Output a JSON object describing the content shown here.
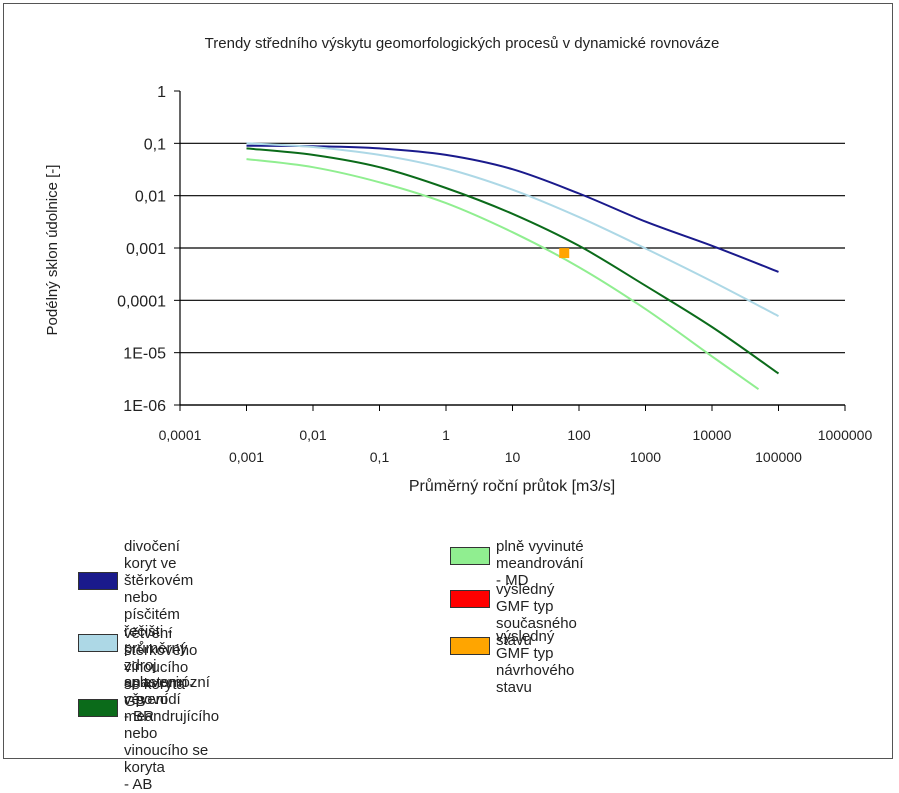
{
  "chart_data": {
    "type": "line",
    "title": "Trendy středního výskytu geomorfologických procesů v dynamické rovnováze",
    "xlabel": "Průměrný roční průtok [m3/s]",
    "ylabel": "Podélný sklon údolnice [-]",
    "x_scale": "log",
    "y_scale": "log",
    "xlim": [
      0.0001,
      1000000
    ],
    "ylim": [
      1e-06,
      1
    ],
    "x_ticks_upper": [
      "0,0001",
      "0,01",
      "1",
      "100",
      "10000",
      "1000000"
    ],
    "x_ticks_lower": [
      "0,001",
      "0,1",
      "10",
      "1000",
      "100000"
    ],
    "y_ticks": [
      "1",
      "0,1",
      "0,01",
      "0,001",
      "0,0001",
      "1E-05",
      "1E-06"
    ],
    "grid": "horizontal",
    "series": [
      {
        "name": "divočení koryt ve štěrkovém nebo písčitém řečišti - průměrný zdroj splavenin v povodí - BR",
        "color": "#1a1a8c",
        "x": [
          0.001,
          0.01,
          0.1,
          1,
          10,
          100,
          1000,
          10000,
          100000
        ],
        "y": [
          0.09,
          0.088,
          0.08,
          0.06,
          0.032,
          0.011,
          0.0032,
          0.0011,
          0.00035
        ]
      },
      {
        "name": "větvení štěrkového vinoucího se koryta - GB",
        "color": "#add8e6",
        "x": [
          0.001,
          0.01,
          0.1,
          1,
          10,
          100,
          1000,
          10000,
          100000
        ],
        "y": [
          0.1,
          0.085,
          0.06,
          0.033,
          0.013,
          0.0039,
          0.00098,
          0.00023,
          5e-05
        ]
      },
      {
        "name": "anastomózní věvení meandrujícího nebo vinoucího se koryta - AB",
        "color": "#0b6b1a",
        "x": [
          0.001,
          0.01,
          0.1,
          1,
          10,
          100,
          1000,
          10000,
          100000
        ],
        "y": [
          0.08,
          0.06,
          0.035,
          0.014,
          0.0045,
          0.0011,
          0.00019,
          3.1e-05,
          4e-06
        ]
      },
      {
        "name": "plně vyvinuté meandrování - MD",
        "color": "#90ee90",
        "x": [
          0.001,
          0.01,
          0.1,
          1,
          10,
          100,
          1000,
          10000,
          50000
        ],
        "y": [
          0.05,
          0.035,
          0.018,
          0.0072,
          0.002,
          0.00043,
          6.8e-05,
          8.5e-06,
          2e-06
        ]
      },
      {
        "name": "výsledný GMF typ současného stavu",
        "color": "#ff0000",
        "x": [],
        "y": []
      },
      {
        "name": "výsledný GMF typ návrhového stavu",
        "color": "#ffa500",
        "x": [
          60
        ],
        "y": [
          0.0008
        ]
      }
    ],
    "legend": [
      {
        "color": "#1a1a8c",
        "text": "divočení koryt ve štěrkovém\nnebo písčitém řečišti - průměrný\nzdroj splavenin v povodí\n- BR"
      },
      {
        "color": "#add8e6",
        "text": "větvení štěrkového vinoucího\nse koryta - GB"
      },
      {
        "color": "#0b6b1a",
        "text": "anastomózní věvení meandrujícího\nnebo vinoucího se koryta\n- AB"
      },
      {
        "color": "#90ee90",
        "text": "plně vyvinuté meandrování\n- MD"
      },
      {
        "color": "#ff0000",
        "text": "výsledný GMF typ současného\nstavu"
      },
      {
        "color": "#ffa500",
        "text": "výsledný GMF typ návrhového\nstavu"
      }
    ]
  }
}
